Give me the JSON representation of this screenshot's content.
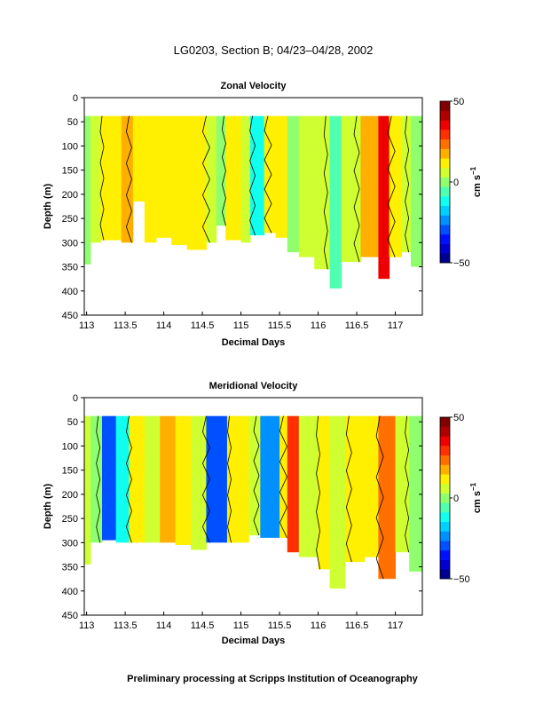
{
  "figure": {
    "title": "LG0203, Section B; 04/23–04/28, 2002",
    "footer": "Preliminary processing at Scripps Institution of Oceanography"
  },
  "chart_data": [
    {
      "type": "heatmap",
      "title": "Zonal Velocity",
      "xlabel": "Decimal Days",
      "ylabel": "Depth (m)",
      "xlim": [
        112.97,
        117.35
      ],
      "ylim": [
        450,
        0
      ],
      "x_ticks": [
        "113",
        "113.5",
        "114",
        "114.5",
        "115",
        "115.5",
        "116",
        "116.5",
        "117"
      ],
      "y_ticks": [
        "0",
        "50",
        "100",
        "150",
        "200",
        "250",
        "300",
        "350",
        "400",
        "450"
      ],
      "data_top_depth": 38,
      "colorbar": {
        "label": "cm s",
        "label_superscript": "−1",
        "min": -50,
        "max": 50,
        "tick_labels": [
          "50",
          "0",
          "−50"
        ]
      },
      "columns": [
        {
          "x0": 112.97,
          "x1": 113.05,
          "v": 2,
          "bottom": 345
        },
        {
          "x0": 113.05,
          "x1": 113.18,
          "v": 5,
          "bottom": 300
        },
        {
          "x0": 113.18,
          "x1": 113.45,
          "v": 10,
          "bottom": 295
        },
        {
          "x0": 113.45,
          "x1": 113.6,
          "v": 16,
          "bottom": 300
        },
        {
          "x0": 113.6,
          "x1": 113.75,
          "v": 12,
          "bottom": 215
        },
        {
          "x0": 113.75,
          "x1": 113.9,
          "v": 10,
          "bottom": 300
        },
        {
          "x0": 113.9,
          "x1": 114.1,
          "v": 14,
          "bottom": 290
        },
        {
          "x0": 114.1,
          "x1": 114.3,
          "v": 12,
          "bottom": 305
        },
        {
          "x0": 114.3,
          "x1": 114.55,
          "v": 10,
          "bottom": 315
        },
        {
          "x0": 114.55,
          "x1": 114.68,
          "v": 3,
          "bottom": 300
        },
        {
          "x0": 114.68,
          "x1": 114.8,
          "v": -2,
          "bottom": 265
        },
        {
          "x0": 114.8,
          "x1": 115.0,
          "v": 12,
          "bottom": 295
        },
        {
          "x0": 115.0,
          "x1": 115.12,
          "v": 6,
          "bottom": 300
        },
        {
          "x0": 115.12,
          "x1": 115.3,
          "v": -10,
          "bottom": 285
        },
        {
          "x0": 115.3,
          "x1": 115.45,
          "v": 10,
          "bottom": 280
        },
        {
          "x0": 115.45,
          "x1": 115.6,
          "v": 14,
          "bottom": 290
        },
        {
          "x0": 115.6,
          "x1": 115.75,
          "v": 2,
          "bottom": 320
        },
        {
          "x0": 115.75,
          "x1": 115.95,
          "v": 8,
          "bottom": 330
        },
        {
          "x0": 115.95,
          "x1": 116.15,
          "v": 4,
          "bottom": 355
        },
        {
          "x0": 116.15,
          "x1": 116.3,
          "v": -3,
          "bottom": 395
        },
        {
          "x0": 116.3,
          "x1": 116.55,
          "v": 6,
          "bottom": 340
        },
        {
          "x0": 116.55,
          "x1": 116.78,
          "v": 15,
          "bottom": 330
        },
        {
          "x0": 116.78,
          "x1": 116.92,
          "v": 34,
          "bottom": 375
        },
        {
          "x0": 116.92,
          "x1": 117.08,
          "v": 10,
          "bottom": 330
        },
        {
          "x0": 117.08,
          "x1": 117.2,
          "v": 4,
          "bottom": 320
        },
        {
          "x0": 117.2,
          "x1": 117.35,
          "v": -1,
          "bottom": 350
        }
      ],
      "contours_x": [
        113.2,
        113.55,
        114.55,
        114.78,
        115.15,
        115.35,
        116.1,
        116.5,
        116.95,
        117.15
      ]
    },
    {
      "type": "heatmap",
      "title": "Meridional Velocity",
      "xlabel": "Decimal Days",
      "ylabel": "Depth (m)",
      "xlim": [
        112.97,
        117.35
      ],
      "ylim": [
        450,
        0
      ],
      "x_ticks": [
        "113",
        "113.5",
        "114",
        "114.5",
        "115",
        "115.5",
        "116",
        "116.5",
        "117"
      ],
      "y_ticks": [
        "0",
        "50",
        "100",
        "150",
        "200",
        "250",
        "300",
        "350",
        "400",
        "450"
      ],
      "data_top_depth": 38,
      "colorbar": {
        "label": "cm s",
        "label_superscript": "−1",
        "min": -50,
        "max": 50,
        "tick_labels": [
          "50",
          "0",
          "−50"
        ]
      },
      "columns": [
        {
          "x0": 112.97,
          "x1": 113.05,
          "v": 4,
          "bottom": 345
        },
        {
          "x0": 113.05,
          "x1": 113.2,
          "v": 2,
          "bottom": 300
        },
        {
          "x0": 113.2,
          "x1": 113.38,
          "v": -30,
          "bottom": 295
        },
        {
          "x0": 113.38,
          "x1": 113.55,
          "v": -14,
          "bottom": 300
        },
        {
          "x0": 113.55,
          "x1": 113.75,
          "v": 10,
          "bottom": 300
        },
        {
          "x0": 113.75,
          "x1": 113.95,
          "v": 4,
          "bottom": 300
        },
        {
          "x0": 113.95,
          "x1": 114.15,
          "v": 16,
          "bottom": 300
        },
        {
          "x0": 114.15,
          "x1": 114.35,
          "v": 10,
          "bottom": 305
        },
        {
          "x0": 114.35,
          "x1": 114.55,
          "v": 4,
          "bottom": 315
        },
        {
          "x0": 114.55,
          "x1": 114.82,
          "v": -28,
          "bottom": 300
        },
        {
          "x0": 114.82,
          "x1": 115.1,
          "v": 10,
          "bottom": 300
        },
        {
          "x0": 115.1,
          "x1": 115.25,
          "v": 4,
          "bottom": 285
        },
        {
          "x0": 115.25,
          "x1": 115.5,
          "v": -22,
          "bottom": 290
        },
        {
          "x0": 115.5,
          "x1": 115.6,
          "v": 12,
          "bottom": 290
        },
        {
          "x0": 115.6,
          "x1": 115.75,
          "v": 28,
          "bottom": 320
        },
        {
          "x0": 115.75,
          "x1": 116.0,
          "v": 6,
          "bottom": 330
        },
        {
          "x0": 116.0,
          "x1": 116.15,
          "v": 10,
          "bottom": 355
        },
        {
          "x0": 116.15,
          "x1": 116.35,
          "v": 6,
          "bottom": 395
        },
        {
          "x0": 116.35,
          "x1": 116.6,
          "v": 10,
          "bottom": 340
        },
        {
          "x0": 116.6,
          "x1": 116.78,
          "v": 14,
          "bottom": 330
        },
        {
          "x0": 116.78,
          "x1": 117.0,
          "v": 24,
          "bottom": 375
        },
        {
          "x0": 117.0,
          "x1": 117.18,
          "v": 6,
          "bottom": 320
        },
        {
          "x0": 117.18,
          "x1": 117.35,
          "v": -2,
          "bottom": 360
        }
      ],
      "contours_x": [
        113.15,
        113.55,
        114.55,
        114.85,
        115.2,
        115.55,
        116.0,
        116.4,
        116.8,
        117.15
      ]
    }
  ]
}
